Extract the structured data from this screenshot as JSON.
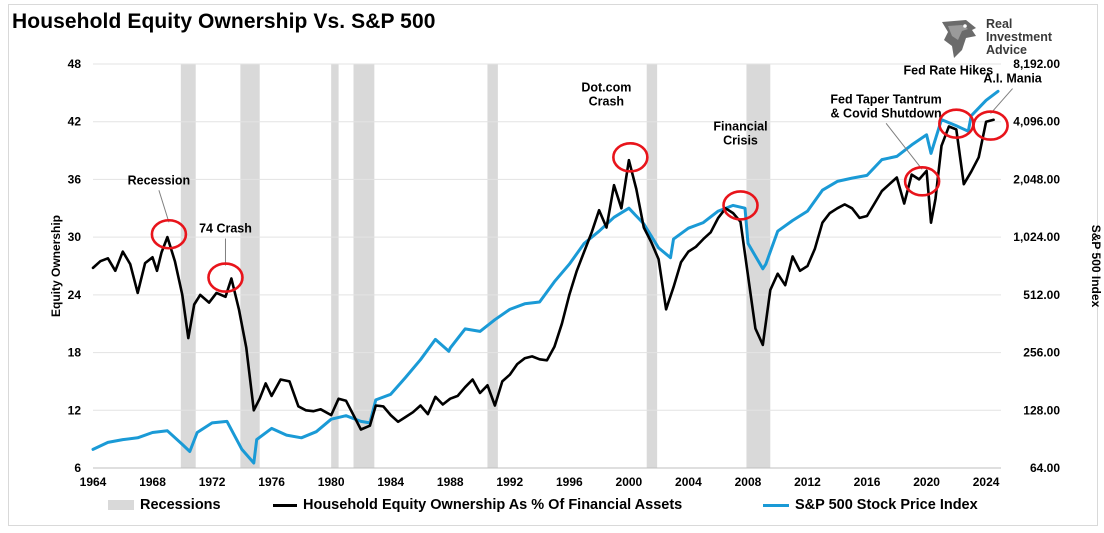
{
  "title": "Household Equity Ownership Vs. S&P 500",
  "logo": {
    "lines": [
      "Real",
      "Investment",
      "Advice"
    ],
    "icon": "eagle-head-icon"
  },
  "colors": {
    "equity": "#000000",
    "sp500": "#1a9ad6",
    "recession": "#d9d9d9",
    "circle": "#e8141b"
  },
  "chart_data": {
    "type": "line",
    "title": "Household Equity Ownership Vs. S&P 500",
    "xlabel": "",
    "ylabel": "Equity Ownership",
    "y2label": "S&P 500 Index",
    "xlim": [
      1964,
      2025
    ],
    "ylim": [
      6,
      48
    ],
    "y2lim": [
      64,
      8192
    ],
    "y2scale": "log2",
    "x_ticks": [
      "1964",
      "1968",
      "1972",
      "1976",
      "1980",
      "1984",
      "1988",
      "1992",
      "1996",
      "2000",
      "2004",
      "2008",
      "2012",
      "2016",
      "2020",
      "2024"
    ],
    "y_ticks": [
      "6",
      "12",
      "18",
      "24",
      "30",
      "36",
      "42",
      "48"
    ],
    "y2_ticks": [
      "64.00",
      "128.00",
      "256.00",
      "512.00",
      "1,024.00",
      "2,048.00",
      "4,096.00",
      "8,192.00"
    ],
    "grid": "horizontal",
    "legend_position": "bottom",
    "recessions": [
      [
        1969.9,
        1970.9
      ],
      [
        1973.9,
        1975.2
      ],
      [
        1980.0,
        1980.5
      ],
      [
        1981.5,
        1982.9
      ],
      [
        1990.5,
        1991.2
      ],
      [
        2001.2,
        2001.9
      ],
      [
        2007.9,
        2009.5
      ]
    ],
    "series": [
      {
        "name": "Household Equity Ownership As % Of Financial Assets",
        "axis": "left",
        "x": [
          1964,
          1964.5,
          1965,
          1965.5,
          1966,
          1966.5,
          1967,
          1967.5,
          1968,
          1968.3,
          1968.6,
          1969,
          1969.5,
          1970,
          1970.4,
          1970.8,
          1971.2,
          1971.8,
          1972.3,
          1972.9,
          1973.3,
          1973.8,
          1974.3,
          1974.8,
          1975.2,
          1975.6,
          1976,
          1976.6,
          1977.2,
          1977.8,
          1978.3,
          1978.8,
          1979.3,
          1980,
          1980.5,
          1981,
          1981.5,
          1982,
          1982.6,
          1983,
          1983.5,
          1984,
          1984.5,
          1985,
          1985.5,
          1986,
          1986.5,
          1987,
          1987.5,
          1988,
          1988.5,
          1989,
          1989.5,
          1990,
          1990.5,
          1991,
          1991.5,
          1992,
          1992.5,
          1993,
          1993.5,
          1994,
          1994.5,
          1995,
          1995.5,
          1996,
          1996.5,
          1997,
          1997.5,
          1998,
          1998.5,
          1999,
          1999.5,
          2000,
          2000.5,
          2001,
          2001.5,
          2002,
          2002.5,
          2003,
          2003.5,
          2004,
          2004.5,
          2005,
          2005.5,
          2006,
          2006.5,
          2007,
          2007.5,
          2008,
          2008.5,
          2009,
          2009.5,
          2010,
          2010.5,
          2011,
          2011.5,
          2012,
          2012.5,
          2013,
          2013.5,
          2014,
          2014.5,
          2015,
          2015.5,
          2016,
          2016.5,
          2017,
          2017.5,
          2018,
          2018.5,
          2019,
          2019.5,
          2020,
          2020.3,
          2020.6,
          2021,
          2021.5,
          2022,
          2022.5,
          2023,
          2023.5,
          2024,
          2024.5
        ],
        "values": [
          26.8,
          27.5,
          27.8,
          26.5,
          28.5,
          27.2,
          24.2,
          27.3,
          27.9,
          26.5,
          28.4,
          30.0,
          27.5,
          24.0,
          19.5,
          23.0,
          24.0,
          23.2,
          24.2,
          23.8,
          25.7,
          22.5,
          18.5,
          12.0,
          13.2,
          14.8,
          13.5,
          15.2,
          15.0,
          12.4,
          12.0,
          11.9,
          12.1,
          11.5,
          13.2,
          13.0,
          11.5,
          10.0,
          10.4,
          12.5,
          12.4,
          11.5,
          10.8,
          11.3,
          11.8,
          12.5,
          11.6,
          13.4,
          12.6,
          13.2,
          13.5,
          14.4,
          15.2,
          13.8,
          14.6,
          12.5,
          15.0,
          15.7,
          16.8,
          17.4,
          17.6,
          17.3,
          17.2,
          18.6,
          21.0,
          24.0,
          26.5,
          28.5,
          30.5,
          32.8,
          31.0,
          35.4,
          33.0,
          38.0,
          35.0,
          31.0,
          29.5,
          27.7,
          22.5,
          24.8,
          27.4,
          28.5,
          29.0,
          29.8,
          30.5,
          32.0,
          33.0,
          32.5,
          31.6,
          26.0,
          20.5,
          18.8,
          24.5,
          26.2,
          25.0,
          28.0,
          26.5,
          27.0,
          28.8,
          31.5,
          32.5,
          33.0,
          33.4,
          33.0,
          32.0,
          32.2,
          33.5,
          34.8,
          35.5,
          36.2,
          33.5,
          36.5,
          36.0,
          36.9,
          31.5,
          34.0,
          39.5,
          41.5,
          41.2,
          35.5,
          36.8,
          38.3,
          42.0,
          42.2
        ]
      },
      {
        "name": "S&P 500 Stock Price Index",
        "axis": "right",
        "x": [
          1964,
          1965,
          1966,
          1967,
          1968,
          1969,
          1970,
          1970.5,
          1971,
          1972,
          1973,
          1974,
          1974.8,
          1975,
          1976,
          1977,
          1978,
          1979,
          1980,
          1981,
          1982,
          1982.6,
          1983,
          1984,
          1985,
          1986,
          1987,
          1987.9,
          1988,
          1989,
          1990,
          1991,
          1992,
          1993,
          1994,
          1995,
          1996,
          1997,
          1998,
          1999,
          2000,
          2001,
          2002,
          2002.8,
          2003,
          2004,
          2005,
          2006,
          2007,
          2007.8,
          2008,
          2009,
          2009.2,
          2010,
          2011,
          2012,
          2013,
          2014,
          2015,
          2016,
          2017,
          2018,
          2019,
          2020,
          2020.3,
          2021,
          2022,
          2022.8,
          2023,
          2024,
          2024.8
        ],
        "values": [
          80,
          87,
          90,
          92,
          98,
          100,
          85,
          78,
          98,
          110,
          112,
          80,
          68,
          90,
          103,
          95,
          92,
          99,
          115,
          120,
          112,
          110,
          145,
          155,
          190,
          235,
          300,
          260,
          270,
          340,
          330,
          380,
          430,
          460,
          470,
          600,
          740,
          950,
          1100,
          1300,
          1450,
          1200,
          900,
          800,
          1000,
          1140,
          1220,
          1400,
          1500,
          1450,
          950,
          700,
          740,
          1100,
          1250,
          1400,
          1800,
          2000,
          2080,
          2150,
          2600,
          2700,
          3100,
          3500,
          2800,
          4200,
          3900,
          3650,
          4400,
          5300,
          5900
        ]
      }
    ],
    "annotations": [
      {
        "label": "Recession",
        "x": 1969.1,
        "y": 30.3
      },
      {
        "label": "74 Crash",
        "x": 1972.9,
        "y": 25.8
      },
      {
        "label": "Dot.com\nCrash",
        "x": 2000.1,
        "y": 38.3
      },
      {
        "label": "Financial\nCrisis",
        "x": 2007.5,
        "y": 33.3
      },
      {
        "label": "Fed Taper Tantrum\n& Covid Shutdown",
        "x": 2019.7,
        "y": 35.8
      },
      {
        "label": "Fed Rate Hikes",
        "x": 2022.0,
        "y": 41.8
      },
      {
        "label": "A.I. Mania",
        "x": 2024.3,
        "y": 41.6
      }
    ]
  },
  "legend": {
    "recessions": "Recessions",
    "equity": "Household Equity Ownership As % Of Financial Assets",
    "sp500": "S&P 500 Stock Price Index"
  }
}
